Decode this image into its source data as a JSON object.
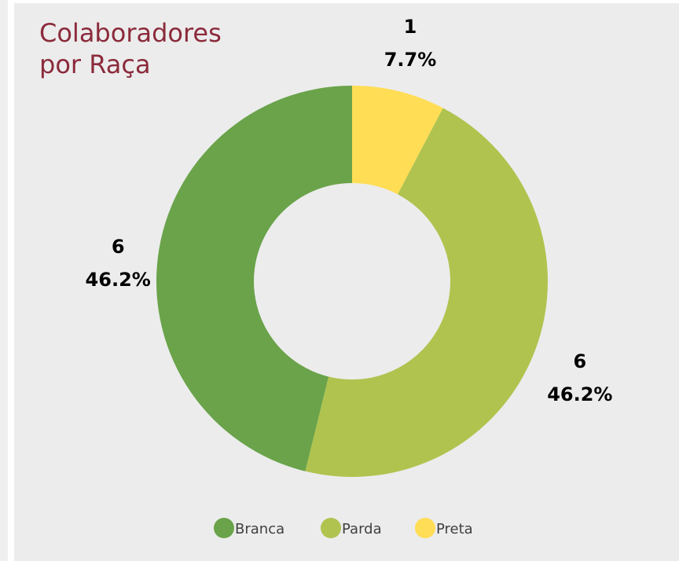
{
  "chart_data": {
    "type": "pie",
    "donut": true,
    "title": "Colaboradores\npor Raça",
    "categories": [
      "Branca",
      "Parda",
      "Preta"
    ],
    "values": [
      6,
      6,
      1
    ],
    "percent_labels": [
      "46.2%",
      "46.2%",
      "7.7%"
    ],
    "colors": [
      "#6aa34a",
      "#b0c34f",
      "#ffdd55"
    ],
    "legend_position": "bottom"
  },
  "colors": {
    "background": "#ececec",
    "title": "#8b2a3b"
  }
}
